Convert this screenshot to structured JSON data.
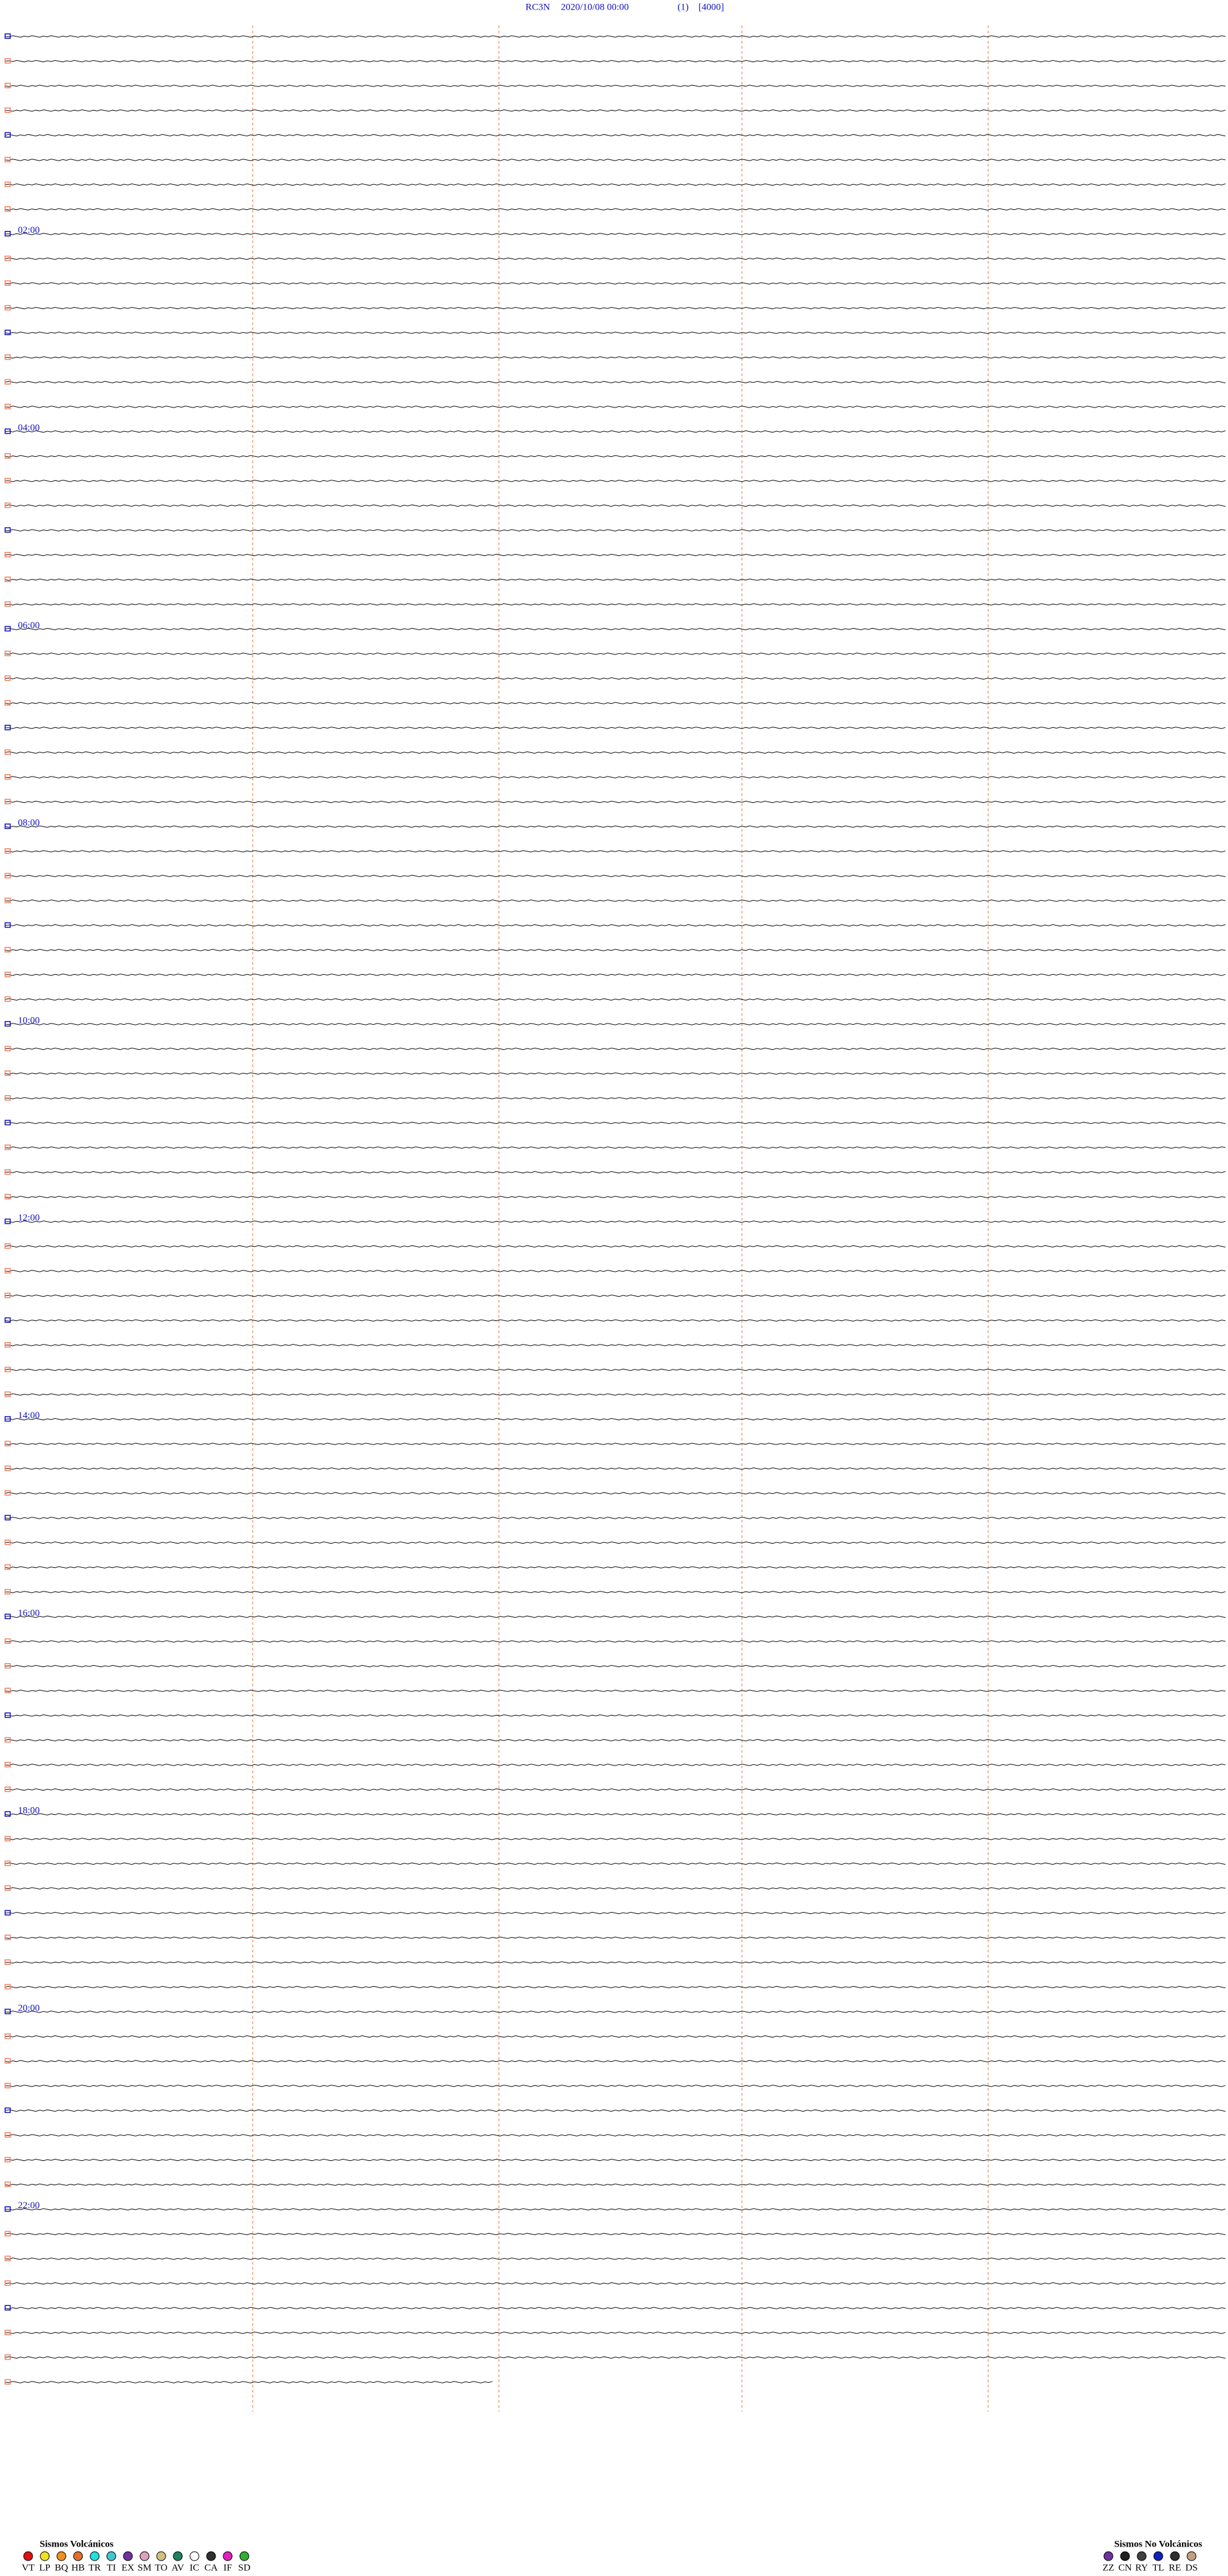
{
  "header": {
    "station": "RC3N",
    "datetime": "2020/10/08 00:00",
    "channel": "(1)",
    "scale": "[4000]"
  },
  "time_labels": [
    "02:00",
    "04:00",
    "06:00",
    "08:00",
    "10:00",
    "12:00",
    "14:00",
    "16:00",
    "18:00",
    "20:00",
    "22:00"
  ],
  "legend_volcanic": {
    "title": "Sismos Volcánicos",
    "items": [
      {
        "code": "VT",
        "color": "#e01010"
      },
      {
        "code": "LP",
        "color": "#f0e020"
      },
      {
        "code": "BQ",
        "color": "#f09020"
      },
      {
        "code": "HB",
        "color": "#e07030"
      },
      {
        "code": "TR",
        "color": "#20e0e0"
      },
      {
        "code": "TI",
        "color": "#40c8d0"
      },
      {
        "code": "EX",
        "color": "#7030a0"
      },
      {
        "code": "SM",
        "color": "#e0a0c0"
      },
      {
        "code": "TO",
        "color": "#d0c080"
      },
      {
        "code": "AV",
        "color": "#208060"
      },
      {
        "code": "IC",
        "color": "#ffffff"
      },
      {
        "code": "CA",
        "color": "#303030"
      },
      {
        "code": "IF",
        "color": "#e020c0"
      },
      {
        "code": "SD",
        "color": "#30b030"
      }
    ]
  },
  "legend_nonvolcanic": {
    "title": "Sismos No Volcánicos",
    "items": [
      {
        "code": "ZZ",
        "color": "#7030a0"
      },
      {
        "code": "CN",
        "color": "#202020"
      },
      {
        "code": "RY",
        "color": "#404040"
      },
      {
        "code": "TL",
        "color": "#1020c0"
      },
      {
        "code": "RE",
        "color": "#303030"
      },
      {
        "code": "DS",
        "color": "#c0a080"
      }
    ]
  }
}
